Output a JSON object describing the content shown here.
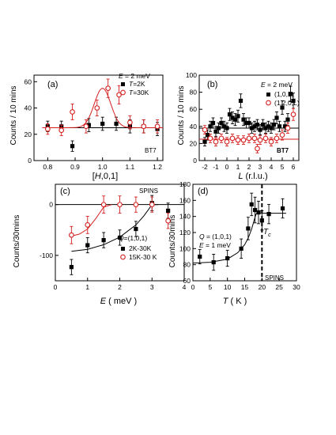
{
  "colors": {
    "black": "#000000",
    "red": "#d62020"
  },
  "chart_data": [
    {
      "id": "a",
      "type": "scatter",
      "panel_label": "(a)",
      "xlabel": "[H,0,1]",
      "ylabel": "Counts / 10 mins",
      "xlim": [
        0.75,
        1.22
      ],
      "ylim": [
        0,
        65
      ],
      "xticks": [
        0.8,
        0.9,
        1.0,
        1.1,
        1.2
      ],
      "xtick_labels": [
        "0.8",
        "0.9",
        "1.0",
        "1.1",
        "1.2"
      ],
      "yticks": [
        0,
        20,
        40,
        60
      ],
      "ytick_labels": [
        "0",
        "20",
        "40",
        "60"
      ],
      "annotations": [
        "E = 2 meV",
        "BT7"
      ],
      "series": [
        {
          "name": "T=2K",
          "marker": "square",
          "color": "#000000",
          "x": [
            0.8,
            0.85,
            0.89,
            0.95,
            1.0,
            1.05,
            1.1,
            1.15,
            1.2
          ],
          "y": [
            26,
            26,
            11,
            27,
            28,
            28,
            26,
            26,
            24
          ],
          "err": [
            4,
            4,
            4,
            5,
            5,
            5,
            5,
            5,
            5
          ],
          "fit": {
            "type": "flat",
            "value": 25
          }
        },
        {
          "name": "T=30K",
          "marker": "circle",
          "color": "#d62020",
          "x": [
            0.8,
            0.85,
            0.89,
            0.94,
            0.98,
            1.02,
            1.06,
            1.1,
            1.15,
            1.2
          ],
          "y": [
            24,
            23,
            37,
            26,
            40,
            55,
            50,
            29,
            26,
            26
          ],
          "err": [
            4,
            4,
            6,
            5,
            6,
            7,
            7,
            5,
            5,
            5
          ],
          "fit": {
            "type": "gaussian",
            "base": 25,
            "amp": 30,
            "center": 1.0,
            "sigma": 0.03
          }
        }
      ]
    },
    {
      "id": "b",
      "type": "scatter",
      "panel_label": "(b)",
      "xlabel": "L (r.l.u.)",
      "ylabel": "Counts / 10 mins",
      "xlim": [
        -2.5,
        6.5
      ],
      "ylim": [
        0,
        100
      ],
      "xticks": [
        -2,
        -1,
        0,
        1,
        2,
        3,
        4,
        5,
        6
      ],
      "xtick_labels": [
        "-2",
        "-1",
        "0",
        "1",
        "2",
        "3",
        "4",
        "5",
        "6"
      ],
      "yticks": [
        0,
        20,
        40,
        60,
        80,
        100
      ],
      "ytick_labels": [
        "0",
        "20",
        "40",
        "60",
        "80",
        "100"
      ],
      "annotations": [
        "E = 2 meV",
        "BT7"
      ],
      "series": [
        {
          "name": "(1,0,L)",
          "marker": "square",
          "color": "#000000",
          "x": [
            -2,
            -1.75,
            -1.5,
            -1.25,
            -1,
            -0.75,
            -0.5,
            -0.25,
            0,
            0.25,
            0.5,
            0.75,
            1,
            1.25,
            1.5,
            1.75,
            2,
            2.25,
            2.5,
            2.75,
            3,
            3.25,
            3.5,
            3.75,
            4,
            4.25,
            4.5,
            4.75,
            5,
            5.25,
            5.5,
            5.75,
            6
          ],
          "y": [
            22,
            30,
            40,
            44,
            34,
            38,
            44,
            40,
            38,
            54,
            50,
            48,
            52,
            70,
            48,
            44,
            44,
            38,
            40,
            42,
            36,
            42,
            38,
            40,
            38,
            42,
            50,
            40,
            62,
            40,
            48,
            78,
            70
          ],
          "err": [
            5,
            6,
            6,
            6,
            6,
            6,
            6,
            6,
            6,
            7,
            7,
            7,
            7,
            8,
            7,
            6,
            6,
            6,
            6,
            6,
            6,
            6,
            6,
            6,
            6,
            6,
            7,
            6,
            8,
            6,
            7,
            9,
            9
          ],
          "fit": {
            "type": "flat",
            "value": 38
          }
        },
        {
          "name": "(1.2,0,L)",
          "marker": "circle",
          "color": "#d62020",
          "x": [
            -2,
            -1.5,
            -1,
            -0.5,
            0,
            0.5,
            1,
            1.5,
            2,
            2.5,
            2.75,
            3,
            3.5,
            4,
            4.5,
            5,
            5.5,
            6
          ],
          "y": [
            36,
            26,
            22,
            26,
            22,
            26,
            24,
            24,
            26,
            26,
            14,
            24,
            26,
            22,
            26,
            30,
            38,
            54
          ],
          "err": [
            5,
            5,
            5,
            5,
            5,
            5,
            5,
            5,
            5,
            5,
            5,
            5,
            5,
            5,
            5,
            6,
            6,
            7
          ],
          "fit": {
            "type": "flat",
            "value": 25
          }
        }
      ]
    },
    {
      "id": "c",
      "type": "scatter",
      "panel_label": "(c)",
      "xlabel": "E ( meV )",
      "ylabel": "Counts/30mins",
      "xlim": [
        0,
        4
      ],
      "ylim": [
        -150,
        40
      ],
      "xticks": [
        0,
        1,
        2,
        3,
        4
      ],
      "xtick_labels": [
        "0",
        "1",
        "2",
        "3",
        "4"
      ],
      "yticks": [
        -100,
        0
      ],
      "ytick_labels": [
        "-100",
        "0"
      ],
      "annotations": [
        "SPINS",
        "Q=(1,0,1)"
      ],
      "zero_line": true,
      "series": [
        {
          "name": "2K-30K",
          "marker": "square",
          "color": "#000000",
          "x": [
            0.5,
            1.0,
            1.5,
            2.0,
            2.5,
            3.0,
            3.5
          ],
          "y": [
            -123,
            -80,
            -70,
            -65,
            -48,
            3,
            -12
          ],
          "err": [
            15,
            15,
            15,
            15,
            15,
            15,
            15
          ],
          "fit": {
            "type": "curve",
            "x": [
              0.5,
              1.0,
              1.5,
              2.0,
              2.5,
              2.75,
              3.0,
              3.2
            ],
            "y": [
              -92,
              -88,
              -79,
              -64,
              -40,
              -22,
              0,
              0
            ]
          }
        },
        {
          "name": "15K-30 K",
          "marker": "circle",
          "color": "#d62020",
          "x": [
            0.5,
            1.0,
            1.5,
            2.0,
            2.5,
            3.0,
            3.5
          ],
          "y": [
            -60,
            -40,
            0,
            0,
            0,
            0,
            -32
          ],
          "err": [
            17,
            17,
            17,
            17,
            15,
            15,
            15
          ],
          "fit": {
            "type": "curve",
            "x": [
              0.5,
              0.75,
              1.0,
              1.25,
              1.5,
              1.75
            ],
            "y": [
              -62,
              -58,
              -48,
              -28,
              -5,
              0
            ]
          }
        }
      ]
    },
    {
      "id": "d",
      "type": "scatter",
      "panel_label": "(d)",
      "xlabel": "T ( K )",
      "ylabel": "Counts/30mins",
      "xlim": [
        0,
        30
      ],
      "ylim": [
        60,
        180
      ],
      "xticks": [
        0,
        5,
        10,
        15,
        20,
        25,
        30
      ],
      "xtick_labels": [
        "0",
        "5",
        "10",
        "15",
        "20",
        "25",
        "30"
      ],
      "yticks": [
        60,
        80,
        100,
        120,
        140,
        160,
        180
      ],
      "ytick_labels": [
        "60",
        "80",
        "100",
        "120",
        "140",
        "160",
        "180"
      ],
      "annotations": [
        "Q = (1,0,1)",
        "E = 1 meV",
        "SPINS"
      ],
      "vline": {
        "x": 20,
        "label": "T",
        "label_sub": "c"
      },
      "series": [
        {
          "name": "",
          "marker": "square",
          "color": "#000000",
          "x": [
            2,
            6,
            10,
            14,
            16,
            17,
            18,
            19,
            20,
            22,
            26
          ],
          "y": [
            90,
            83,
            88,
            100,
            125,
            155,
            148,
            145,
            135,
            143,
            150
          ],
          "err": [
            9,
            10,
            10,
            12,
            14,
            14,
            16,
            14,
            12,
            12,
            12
          ],
          "fit": {
            "type": "curve",
            "x": [
              0,
              5,
              10,
              13,
              15,
              16,
              17,
              17.8,
              18.3,
              19,
              20,
              22,
              25,
              27
            ],
            "y": [
              82,
              83,
              87,
              95,
              105,
              113,
              124,
              136,
              143,
              145,
              144,
              144,
              144,
              144
            ]
          }
        }
      ]
    }
  ]
}
